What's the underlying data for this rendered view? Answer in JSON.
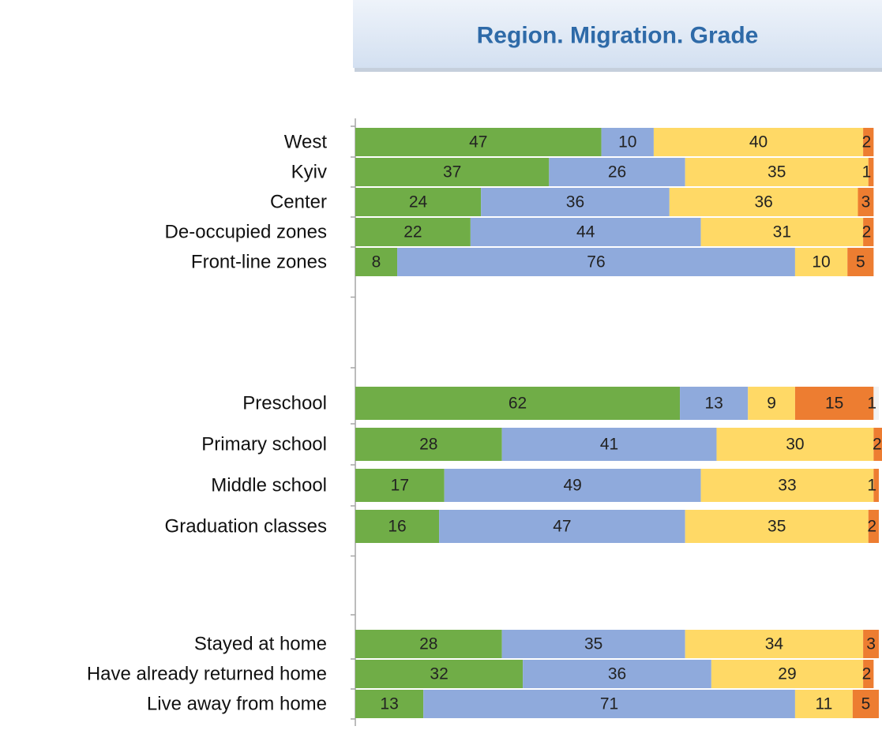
{
  "chart_data": {
    "type": "stacked-bar",
    "orientation": "horizontal",
    "title": "Region. Migration. Grade",
    "categories": [
      "West",
      "Kyiv",
      "Center",
      "De-occupied zones",
      "Front-line zones",
      null,
      "Preschool",
      "Primary school",
      "Middle school",
      "Graduation classes",
      null,
      "Stayed at home",
      "Have already returned home",
      "Live away from home"
    ],
    "series": [
      {
        "color": "#70ad47",
        "values": [
          47,
          37,
          24,
          22,
          8,
          null,
          62,
          28,
          17,
          16,
          null,
          28,
          32,
          13
        ]
      },
      {
        "color": "#8faadc",
        "values": [
          10,
          26,
          36,
          44,
          76,
          null,
          13,
          41,
          49,
          47,
          null,
          35,
          36,
          71
        ]
      },
      {
        "color": "#ffd966",
        "values": [
          40,
          35,
          36,
          31,
          10,
          null,
          9,
          30,
          33,
          35,
          null,
          34,
          29,
          11
        ]
      },
      {
        "color": "#ed7d31",
        "values": [
          2,
          1,
          3,
          2,
          5,
          null,
          15,
          2,
          1,
          2,
          null,
          3,
          2,
          5
        ]
      },
      {
        "color": "#f2f2f2",
        "values": [
          null,
          null,
          null,
          null,
          null,
          null,
          1,
          null,
          null,
          null,
          null,
          null,
          null,
          null
        ]
      }
    ],
    "xlim": [
      0,
      100
    ]
  }
}
